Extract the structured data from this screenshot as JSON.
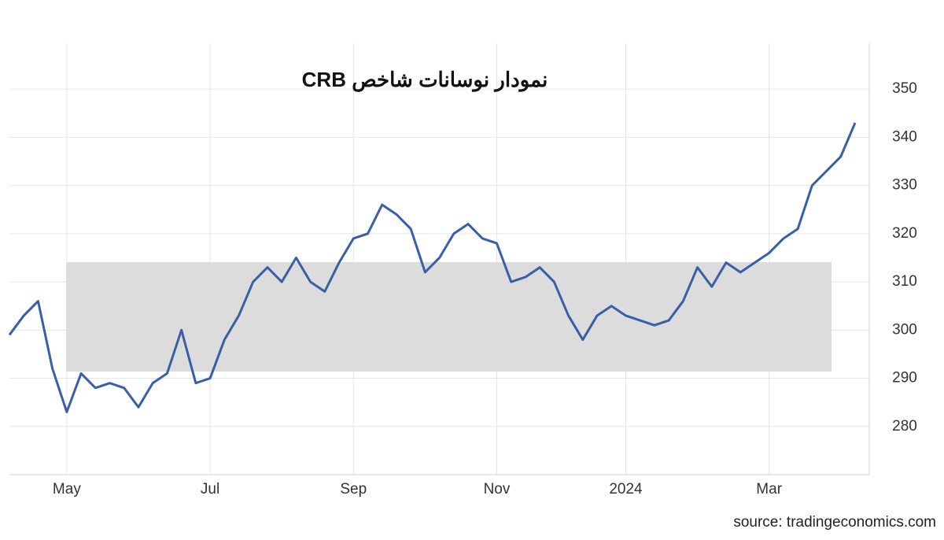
{
  "chart_data": {
    "type": "line",
    "title": "نمودار نوسانات شاخص CRB",
    "source": "source: tradingeconomics.com",
    "categories": [
      null,
      null,
      null,
      null,
      "May",
      null,
      null,
      null,
      null,
      null,
      null,
      null,
      null,
      null,
      "Jul",
      null,
      null,
      null,
      null,
      null,
      null,
      null,
      null,
      null,
      "Sep",
      null,
      null,
      null,
      null,
      null,
      null,
      null,
      null,
      null,
      "Nov",
      null,
      null,
      null,
      null,
      null,
      null,
      null,
      null,
      "2024",
      null,
      null,
      null,
      null,
      null,
      null,
      null,
      null,
      null,
      "Mar",
      null,
      null,
      null,
      null,
      null,
      null
    ],
    "series": [
      {
        "color": "#3a5ea8",
        "values": [
          299,
          303,
          306,
          292,
          283,
          291,
          288,
          289,
          288,
          284,
          289,
          291,
          300,
          289,
          290,
          298,
          303,
          310,
          313,
          310,
          315,
          310,
          308,
          314,
          319,
          320,
          326,
          324,
          321,
          312,
          315,
          320,
          322,
          319,
          318,
          310,
          311,
          313,
          310,
          303,
          298,
          303,
          305,
          303,
          302,
          301,
          302,
          306,
          313,
          309,
          314,
          312,
          314,
          316,
          319,
          321,
          330,
          333,
          336,
          343
        ]
      }
    ],
    "ylim": [
      270,
      359.5
    ],
    "yticks": [
      280,
      290,
      300,
      310,
      320,
      330,
      340,
      350
    ],
    "grid": true
  }
}
